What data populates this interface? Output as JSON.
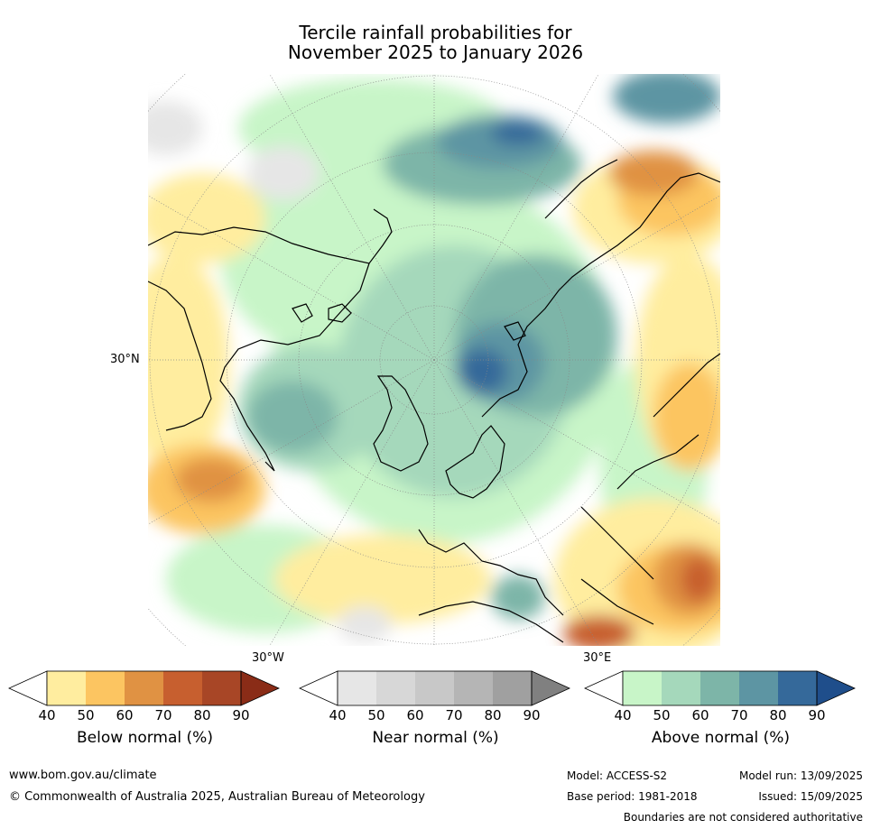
{
  "title": {
    "line1": "Tercile rainfall probabilities for",
    "line2": "November 2025 to January 2026"
  },
  "map": {
    "projection": "north-polar-stereographic",
    "lat_label": "30°N",
    "lon_label_left": "30°W",
    "lon_label_right": "30°E"
  },
  "colorbars": [
    {
      "label": "Below normal (%)",
      "ticks": [
        "40",
        "50",
        "60",
        "70",
        "80",
        "90"
      ],
      "colors": [
        "#ffffff",
        "#ffed9f",
        "#fcc561",
        "#e09243",
        "#c75f2f",
        "#a84626",
        "#8a2c17"
      ]
    },
    {
      "label": "Near normal (%)",
      "ticks": [
        "40",
        "50",
        "60",
        "70",
        "80",
        "90"
      ],
      "colors": [
        "#ffffff",
        "#e6e6e6",
        "#d7d7d7",
        "#c8c8c8",
        "#b5b5b5",
        "#a0a0a0",
        "#808080"
      ]
    },
    {
      "label": "Above normal (%)",
      "ticks": [
        "40",
        "50",
        "60",
        "70",
        "80",
        "90"
      ],
      "colors": [
        "#ffffff",
        "#c8f5c8",
        "#a5d8bb",
        "#7db5a8",
        "#5d95a3",
        "#35699a",
        "#1f4e8b"
      ]
    }
  ],
  "footer": {
    "website": "www.bom.gov.au/climate",
    "copyright": "© Commonwealth of Australia 2025, Australian Bureau of Meteorology",
    "model": "Model: ACCESS-S2",
    "base_period": "Base period: 1981-2018",
    "model_run": "Model run: 13/09/2025",
    "issued": "Issued: 15/09/2025",
    "disclaimer": "Boundaries are not considered authoritative"
  }
}
